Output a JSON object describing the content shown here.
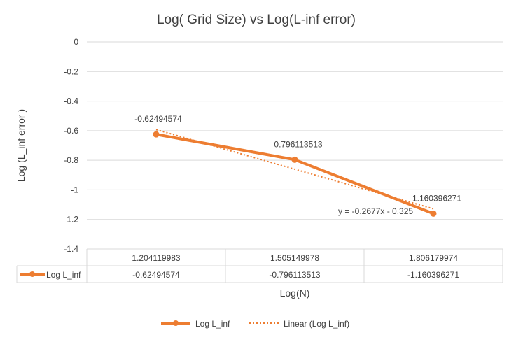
{
  "chart_data": {
    "type": "line",
    "title": "Log( Grid Size) vs Log(L-inf error)",
    "xlabel": "Log(N)",
    "ylabel": "Log (L_inf error )",
    "ylim": [
      -1.4,
      0
    ],
    "yticks": [
      "0",
      "-0.2",
      "-0.4",
      "-0.6",
      "-0.8",
      "-1",
      "-1.2",
      "-1.4"
    ],
    "ytick_values": [
      0,
      -0.2,
      -0.4,
      -0.6,
      -0.8,
      -1,
      -1.2,
      -1.4
    ],
    "categories": [
      "1.204119983",
      "1.505149978",
      "1.806179974"
    ],
    "grid": true,
    "legend_position": "bottom",
    "series": [
      {
        "name": "Log L_inf",
        "values": [
          -0.62494574,
          -0.796113513,
          -1.160396271
        ],
        "labels": [
          "-0.62494574",
          "-0.796113513",
          "-1.160396271"
        ],
        "color": "#ED7D31"
      }
    ],
    "trendline": {
      "name": "Linear (Log L_inf)",
      "slope": -0.2677,
      "intercept": -0.325,
      "equation": "y = -0.2677x - 0.325",
      "color": "#ED7D31"
    },
    "data_table": {
      "header": [
        "1.204119983",
        "1.505149978",
        "1.806179974"
      ],
      "row_label": "Log L_inf",
      "row_values": [
        "-0.62494574",
        "-0.796113513",
        "-1.160396271"
      ]
    }
  }
}
